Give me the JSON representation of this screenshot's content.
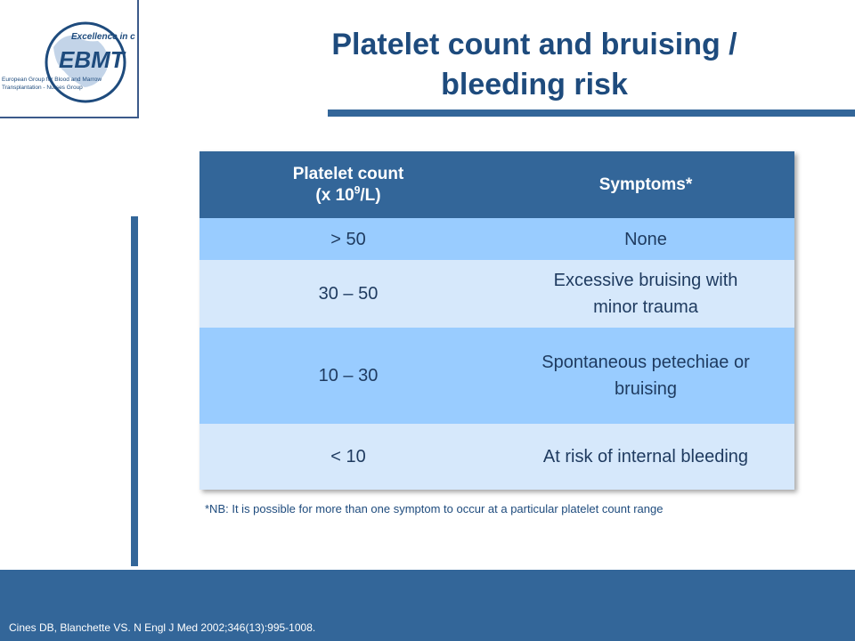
{
  "logo": {
    "tagline": "Excellence in care",
    "name": "EBMT",
    "line1": "European Group for Blood and Marrow",
    "line2": "Transplantation - Nurses Group"
  },
  "title": {
    "line1": "Platelet count and bruising /",
    "line2": "bleeding risk"
  },
  "table": {
    "header": {
      "col1_line1": "Platelet count",
      "col1_line2_prefix": "(x 10",
      "col1_sup": "9",
      "col1_line2_suffix": "/L)",
      "col2": "Symptoms*"
    },
    "rows": [
      {
        "count": "> 50",
        "symptom": "None"
      },
      {
        "count": "30 – 50",
        "symptom": "Excessive bruising with minor trauma"
      },
      {
        "count": "10 – 30",
        "symptom": "Spontaneous petechiae or bruising"
      },
      {
        "count": "< 10",
        "symptom": "At risk of internal bleeding"
      }
    ]
  },
  "note": "*NB: It is possible for more than one symptom to occur at a particular platelet count range",
  "citation": "Cines DB, Blanchette VS. N Engl J Med 2002;346(13):995-1008.",
  "colors": {
    "accent": "#336699",
    "title": "#1e4b7d",
    "row_dark": "#99ccff",
    "row_light": "#d6e8fb"
  }
}
